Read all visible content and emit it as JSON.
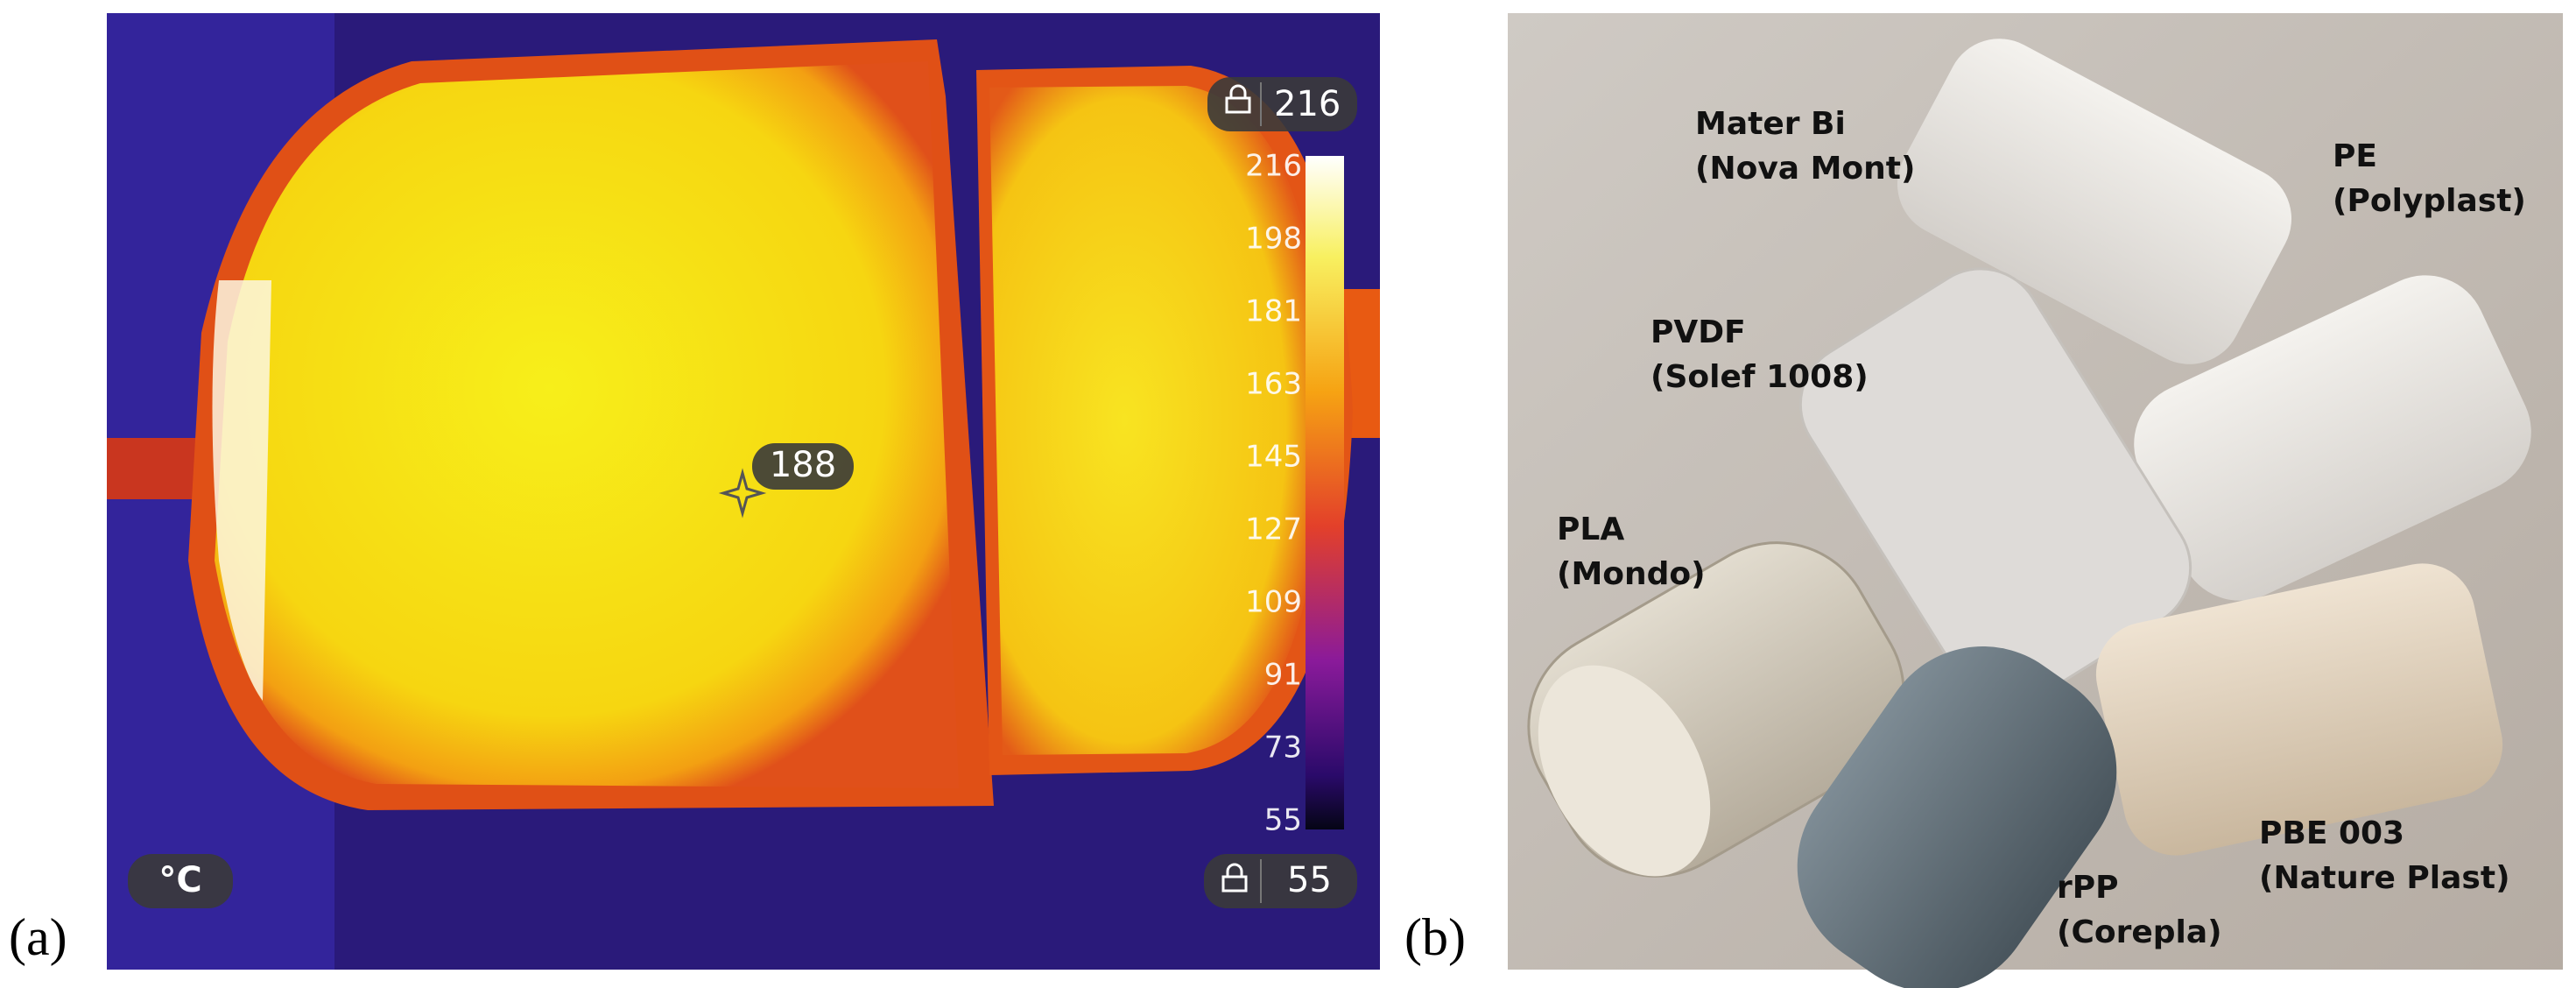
{
  "panel_a": {
    "label": "(a)",
    "max_readout": "216",
    "min_readout": "55",
    "spot_readout": "188",
    "unit": "°C",
    "scale_ticks": [
      "216",
      "198",
      "181",
      "163",
      "145",
      "127",
      "109",
      "91",
      "73",
      "55"
    ]
  },
  "panel_b": {
    "label": "(b)",
    "samples": [
      {
        "name": "Mater Bi",
        "source": "(Nova Mont)"
      },
      {
        "name": "PE",
        "source": "(Polyplast)"
      },
      {
        "name": "PVDF",
        "source": "(Solef 1008)"
      },
      {
        "name": "PLA",
        "source": "(Mondo)"
      },
      {
        "name": "rPP",
        "source": "(Corepla)"
      },
      {
        "name": "PBE 003",
        "source": "(Nature Plast)"
      }
    ]
  }
}
